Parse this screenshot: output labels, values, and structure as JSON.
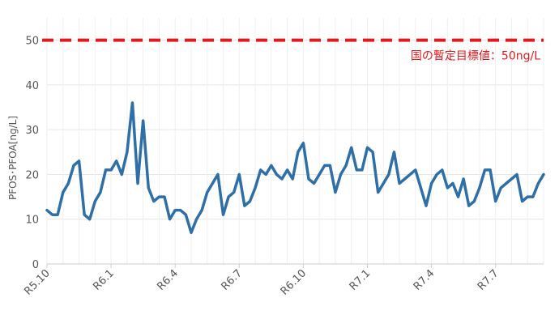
{
  "chart_data": {
    "type": "line",
    "ylabel": "PFOS･PFOA[ng/L]",
    "ylim": [
      0,
      55
    ],
    "yticks": [
      0,
      10,
      20,
      30,
      40,
      50
    ],
    "xtick_labels": [
      "R5.10",
      "R6.1",
      "R6.4",
      "R6.7",
      "R6.10",
      "R7.1",
      "R7.4",
      "R7.7"
    ],
    "reference_line": {
      "value": 50,
      "label": "国の暫定目標値：50ng/L",
      "color": "#e31a1c",
      "style": "dashed"
    },
    "series": [
      {
        "color": "#2f6fa8",
        "values": [
          12,
          11,
          11,
          16,
          18,
          22,
          23,
          11,
          10,
          14,
          16,
          21,
          21,
          23,
          20,
          25,
          36,
          18,
          32,
          17,
          14,
          15,
          15,
          10,
          12,
          12,
          11,
          7,
          10,
          12,
          16,
          18,
          20,
          11,
          15,
          16,
          20,
          13,
          14,
          17,
          21,
          20,
          22,
          20,
          19,
          21,
          19,
          25,
          27,
          19,
          18,
          20,
          22,
          22,
          16,
          20,
          22,
          26,
          21,
          21,
          26,
          25,
          16,
          18,
          20,
          25,
          18,
          19,
          20,
          21,
          17,
          13,
          18,
          20,
          21,
          17,
          18,
          15,
          19,
          13,
          14,
          17,
          21,
          21,
          14,
          17,
          18,
          19,
          20,
          14,
          15,
          15,
          18,
          20
        ]
      }
    ],
    "grid": true
  }
}
